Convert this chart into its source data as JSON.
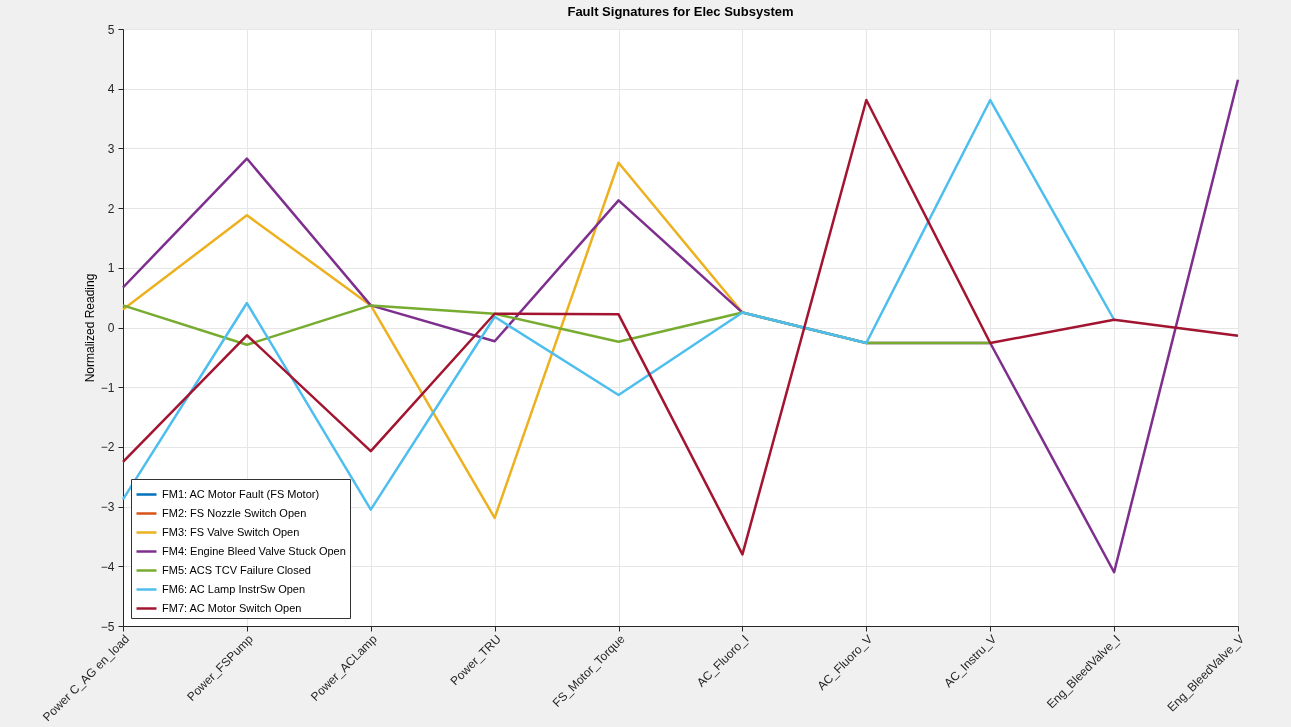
{
  "chart_data": {
    "type": "line",
    "title": "Fault Signatures for Elec Subsystem",
    "ylabel": "Normalized Reading",
    "categories": [
      "Power C_AG en_load",
      "Power_FSPump",
      "Power_ACLamp",
      "Power_TRU",
      "FS_Motor_Torque",
      "AC_Fluoro_I",
      "AC_Fluoro_V",
      "AC_Instru_V",
      "Eng_BleedValve_I",
      "Eng_BleedValve_V"
    ],
    "series": [
      {
        "name": "FM1: AC Motor Fault (FS Motor)",
        "color": "#0072bd",
        "values": [
          null,
          null,
          null,
          null,
          null,
          null,
          null,
          null,
          null,
          null
        ]
      },
      {
        "name": "FM2: FS Nozzle Switch Open",
        "color": "#d95319",
        "values": [
          null,
          null,
          null,
          null,
          null,
          null,
          null,
          null,
          null,
          null
        ]
      },
      {
        "name": "FM3: FS Valve Switch Open",
        "color": "#edb120",
        "values": [
          0.3,
          1.88,
          0.37,
          -3.19,
          2.76,
          0.25,
          null,
          null,
          null,
          null
        ]
      },
      {
        "name": "FM4: Engine Bleed Valve Stuck Open",
        "color": "#7e2f8e",
        "values": [
          0.67,
          2.83,
          0.37,
          -0.23,
          2.13,
          0.25,
          -0.26,
          -0.26,
          -4.1,
          4.15
        ]
      },
      {
        "name": "FM5: ACS TCV Failure Closed",
        "color": "#77ac30",
        "values": [
          0.37,
          -0.29,
          0.37,
          0.23,
          -0.24,
          0.25,
          -0.26,
          -0.26,
          null,
          null
        ]
      },
      {
        "name": "FM6: AC Lamp InstrSw Open",
        "color": "#4dbeee",
        "values": [
          -2.88,
          0.41,
          -3.05,
          0.18,
          -1.13,
          0.25,
          -0.26,
          3.81,
          0.13,
          null
        ]
      },
      {
        "name": "FM7: AC Motor Switch Open",
        "color": "#a2142f",
        "values": [
          -2.25,
          -0.13,
          -2.07,
          0.23,
          0.22,
          -3.8,
          3.81,
          -0.26,
          0.13,
          -0.14
        ]
      }
    ],
    "ylim": [
      -5,
      5
    ],
    "yticks": [
      -5,
      -4,
      -3,
      -2,
      -1,
      0,
      1,
      2,
      3,
      4,
      5
    ],
    "grid": true,
    "legend": "bottom left",
    "line_style": "solid",
    "marker": "none"
  }
}
